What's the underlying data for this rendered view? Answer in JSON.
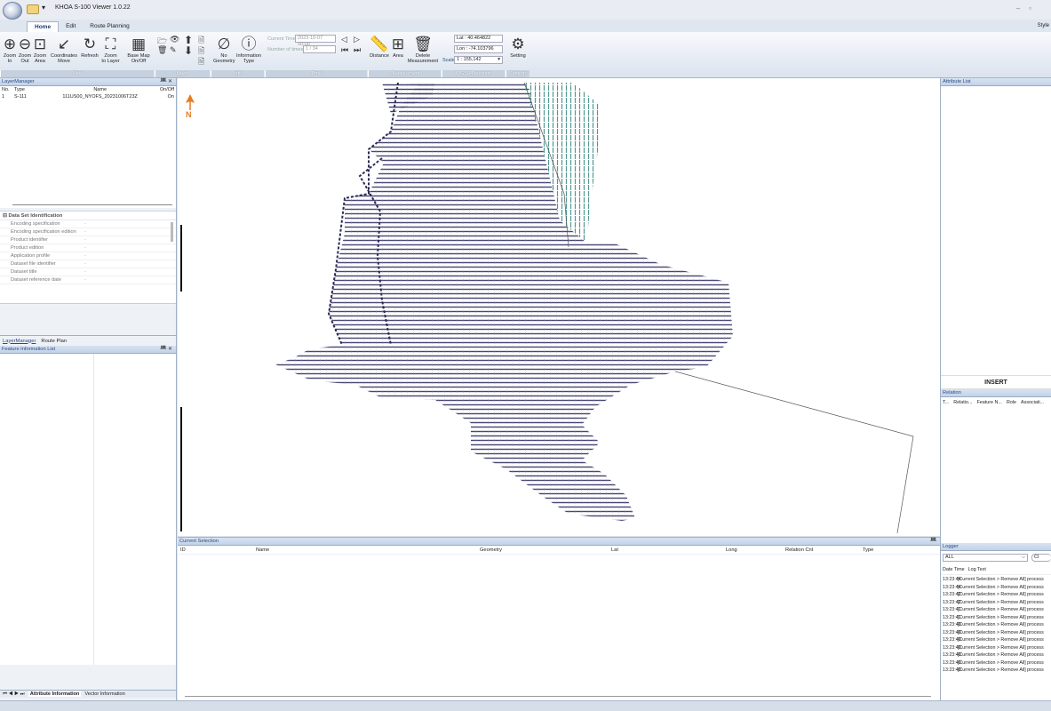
{
  "app": {
    "title": "KHOA S-100 Viewer 1.0.22",
    "style_label": "Style"
  },
  "tabs": [
    "Home",
    "Edit",
    "Route Planning"
  ],
  "ribbon": {
    "view": {
      "group": "View",
      "zoom_in": [
        "Zoom",
        "In"
      ],
      "zoom_out": [
        "Zoom",
        "Out"
      ],
      "zoom_area": [
        "Zoom",
        "Area"
      ],
      "coord_move": [
        "Coordinates",
        "Move"
      ],
      "refresh": [
        "Refresh",
        ""
      ],
      "zoom_layer": [
        "Zoom",
        "to Layer"
      ],
      "basemap": [
        "Base Map",
        "On/Off"
      ]
    },
    "layer": {
      "group": "Layer"
    },
    "info": {
      "group": "Info",
      "no_geometry": [
        "No",
        "Geometry"
      ],
      "info_type": [
        "Information",
        "Type"
      ]
    },
    "time": {
      "group": "Time",
      "current_time_label": "Current Time",
      "current_time": "2023-10-07 00:00",
      "num_times_label": "Number of times",
      "num_times": "1 / 34"
    },
    "measurement": {
      "group": "Measurement",
      "distance": "Distance",
      "area": "Area",
      "delete": [
        "Delete",
        "Measurement"
      ]
    },
    "wgs": {
      "group": "WGS84 position",
      "lat": "Lat : 40.464822",
      "lon": "Lon : -74.103796",
      "scale_label": "Scale",
      "scale": "1 : 155,142"
    },
    "settings": {
      "group": "Settings",
      "setting": "Setting"
    }
  },
  "layer_manager": {
    "title": "LayerManager",
    "columns": [
      "No.",
      "Type",
      "Name",
      "On/Off"
    ],
    "rows": [
      [
        "1",
        "S-111",
        "111US00_NYOFS_20231006T23Z",
        "On"
      ]
    ]
  },
  "dataset": {
    "title": "Data Set Identification",
    "props": [
      [
        "Encoding specification",
        "-"
      ],
      [
        "Encoding specification edition",
        "-"
      ],
      [
        "Product identifier",
        "-"
      ],
      [
        "Product edition",
        "-"
      ],
      [
        "Application profile",
        "-"
      ],
      [
        "Dataset file identifier",
        "-"
      ],
      [
        "Dataset title",
        "-"
      ],
      [
        "Dataset reference date",
        "-"
      ]
    ]
  },
  "left_tabs": [
    "LayerManager",
    "Route Plan"
  ],
  "feature_info": {
    "title": "Feature Information List"
  },
  "bottom_tabs": [
    "Attribute Information",
    "Vector Information"
  ],
  "map": {
    "north": "N"
  },
  "current_selection": {
    "title": "Current Selection",
    "columns": [
      "ID",
      "Name",
      "Geometry",
      "Lat",
      "Long",
      "Relation Cnt",
      "Type"
    ]
  },
  "attribute_list": {
    "title": "Attribute List",
    "insert": "INSERT"
  },
  "relation": {
    "title": "Relation",
    "columns": [
      "T...",
      "Relatio...",
      "Feature N...",
      "Role",
      "Associati..."
    ]
  },
  "logger": {
    "title": "Logger",
    "filter": "ALL",
    "clear": "Cl",
    "columns": [
      "Date Time",
      "Log Text"
    ],
    "rows": [
      [
        "13:23:44",
        "[Current Selection > Remove All] process"
      ],
      [
        "13:23:44",
        "[Current Selection > Remove All] process"
      ],
      [
        "13:23:42",
        "[Current Selection > Remove All] process"
      ],
      [
        "13:23:42",
        "[Current Selection > Remove All] process"
      ],
      [
        "13:23:41",
        "[Current Selection > Remove All] process"
      ],
      [
        "13:23:41",
        "[Current Selection > Remove All] process"
      ],
      [
        "13:23:40",
        "[Current Selection > Remove All] process"
      ],
      [
        "13:23:40",
        "[Current Selection > Remove All] process"
      ],
      [
        "13:23:40",
        "[Current Selection > Remove All] process"
      ],
      [
        "13:23:40",
        "[Current Selection > Remove All] process"
      ],
      [
        "13:23:40",
        "[Current Selection > Remove All] process"
      ],
      [
        "13:23:40",
        "[Current Selection > Remove All] process"
      ],
      [
        "13:23:40",
        "[Current Selection > Remove All] process"
      ]
    ]
  },
  "colors": {
    "arrow": "#3c3a6b",
    "arrow_green": "#3f8c86",
    "accent": "#2a4a86",
    "north": "#e57c1e"
  }
}
